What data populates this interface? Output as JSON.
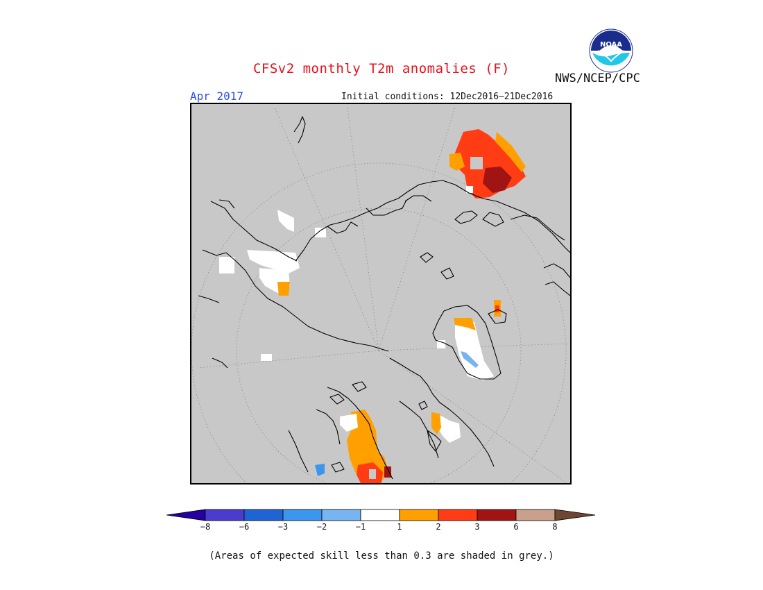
{
  "title": "CFSv2 monthly T2m anomalies (F)",
  "month_label": "Apr 2017",
  "initial_conditions": "Initial conditions: 12Dec2016–21Dec2016",
  "agency": "NWS/NCEP/CPC",
  "logo_text": "NOAA",
  "footnote": "(Areas of expected skill less than 0.3 are shaded in grey.)",
  "map": {
    "projection": "north-polar-stereographic",
    "background_color": "#c8c8c8",
    "icon": "polar-map"
  },
  "legend": {
    "ticks": [
      "−8",
      "−6",
      "−3",
      "−2",
      "−1",
      "1",
      "2",
      "3",
      "6",
      "8"
    ],
    "colors": [
      "#2400a0",
      "#4a3ccc",
      "#1f64d2",
      "#3c96ee",
      "#78b4f0",
      "#ffffff",
      "#ffa000",
      "#ff3c14",
      "#a01414",
      "#c8a08c",
      "#6e4632"
    ]
  }
}
